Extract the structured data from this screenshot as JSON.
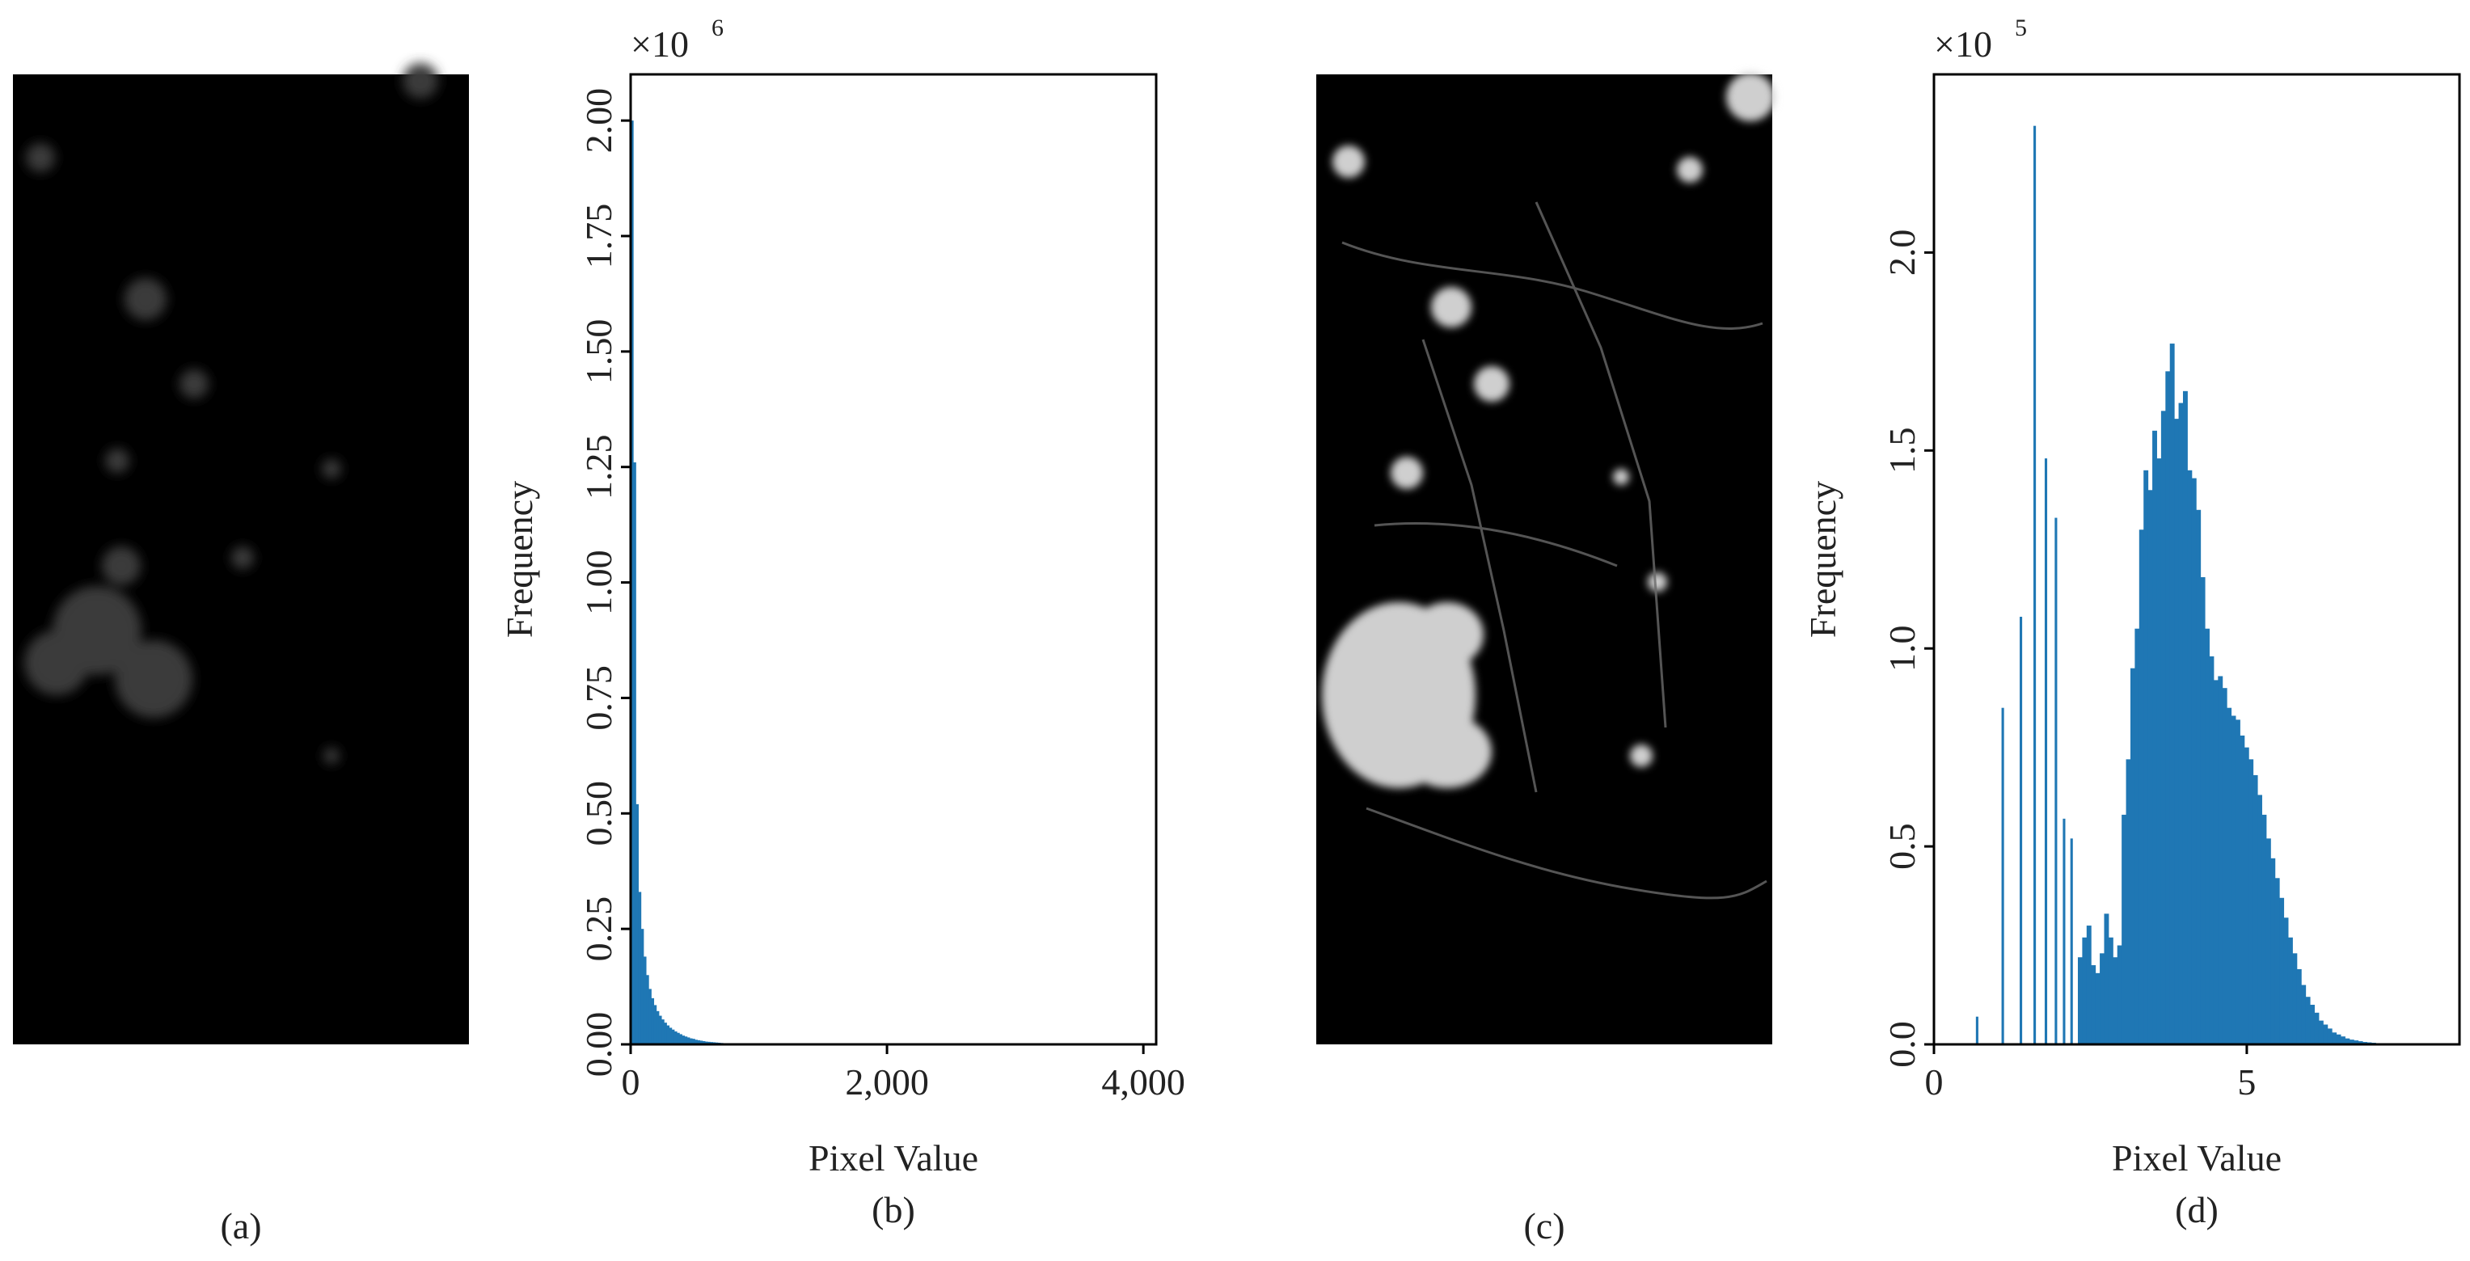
{
  "panels": {
    "a": {
      "caption": "(a)",
      "description": "raw night-time light image"
    },
    "c": {
      "caption": "(c)",
      "description": "log-transformed night-time light image"
    }
  },
  "colors": {
    "bar": "#1f77b4",
    "axis": "#000000",
    "image_bg": "#000000",
    "light": "#d8d8d8"
  },
  "chart_data": [
    {
      "id": "b",
      "type": "bar",
      "caption": "(b)",
      "title": "",
      "xlabel": "Pixel Value",
      "ylabel": "Frequency",
      "scale_label": "×10",
      "scale_exp": "6",
      "xlim": [
        0,
        4100
      ],
      "ylim": [
        0,
        2.1
      ],
      "xticks": [
        0,
        2000,
        4000
      ],
      "xtick_labels": [
        "0",
        "2,000",
        "4,000"
      ],
      "yticks": [
        0,
        0.25,
        0.5,
        0.75,
        1.0,
        1.25,
        1.5,
        1.75,
        2.0
      ],
      "ytick_labels": [
        "0.00",
        "0.25",
        "0.50",
        "0.75",
        "1.00",
        "1.25",
        "1.50",
        "1.75",
        "2.00"
      ],
      "bin_width": 20,
      "bin_start": 0,
      "values": [
        2.0,
        1.26,
        0.52,
        0.33,
        0.25,
        0.19,
        0.15,
        0.12,
        0.1,
        0.085,
        0.072,
        0.062,
        0.054,
        0.047,
        0.041,
        0.036,
        0.032,
        0.028,
        0.025,
        0.022,
        0.019,
        0.017,
        0.015,
        0.013,
        0.012,
        0.01,
        0.009,
        0.008,
        0.007,
        0.006,
        0.0055,
        0.005,
        0.0045,
        0.004,
        0.0035,
        0.003,
        0.0026,
        0.0022,
        0.0019,
        0.0016,
        0.0014,
        0.0012,
        0.001,
        0.0009,
        0.0008,
        0.0007,
        0.0006,
        0.0005,
        0.0004,
        0.0004,
        0.0003,
        0.0003,
        0.0002,
        0.0002,
        0.0002,
        0.0001,
        0.0001,
        0.0001,
        0.0001,
        0.0001
      ]
    },
    {
      "id": "d",
      "type": "bar",
      "caption": "(d)",
      "title": "",
      "xlabel": "Pixel Value",
      "ylabel": "Frequency",
      "scale_label": "×10",
      "scale_exp": "5",
      "xlim": [
        0,
        8.4
      ],
      "ylim": [
        0,
        2.45
      ],
      "xticks": [
        0,
        5
      ],
      "xtick_labels": [
        "0",
        "5"
      ],
      "yticks": [
        0,
        0.5,
        1.0,
        1.5,
        2.0
      ],
      "ytick_labels": [
        "0.0",
        "0.5",
        "1.0",
        "1.5",
        "2.0"
      ],
      "bin_width": 0.07,
      "bars": [
        {
          "x": 0.69,
          "y": 0.07,
          "w": 0.04
        },
        {
          "x": 1.1,
          "y": 0.85,
          "w": 0.04
        },
        {
          "x": 1.39,
          "y": 1.08,
          "w": 0.04
        },
        {
          "x": 1.61,
          "y": 2.32,
          "w": 0.04
        },
        {
          "x": 1.79,
          "y": 1.48,
          "w": 0.04
        },
        {
          "x": 1.95,
          "y": 1.33,
          "w": 0.04
        },
        {
          "x": 2.08,
          "y": 0.57,
          "w": 0.04
        },
        {
          "x": 2.2,
          "y": 0.52,
          "w": 0.04
        }
      ],
      "hist_start": 2.3,
      "values": [
        0.22,
        0.27,
        0.3,
        0.2,
        0.18,
        0.23,
        0.33,
        0.27,
        0.22,
        0.25,
        0.58,
        0.72,
        0.95,
        1.05,
        1.3,
        1.45,
        1.4,
        1.55,
        1.48,
        1.6,
        1.7,
        1.77,
        1.58,
        1.62,
        1.65,
        1.45,
        1.43,
        1.35,
        1.18,
        1.05,
        0.98,
        0.92,
        0.93,
        0.9,
        0.85,
        0.83,
        0.82,
        0.78,
        0.75,
        0.72,
        0.68,
        0.63,
        0.58,
        0.52,
        0.47,
        0.42,
        0.37,
        0.32,
        0.27,
        0.23,
        0.19,
        0.15,
        0.12,
        0.1,
        0.08,
        0.06,
        0.05,
        0.04,
        0.03,
        0.025,
        0.02,
        0.015,
        0.012,
        0.01,
        0.008,
        0.006,
        0.005,
        0.004,
        0.003,
        0.002,
        0.001
      ]
    }
  ]
}
